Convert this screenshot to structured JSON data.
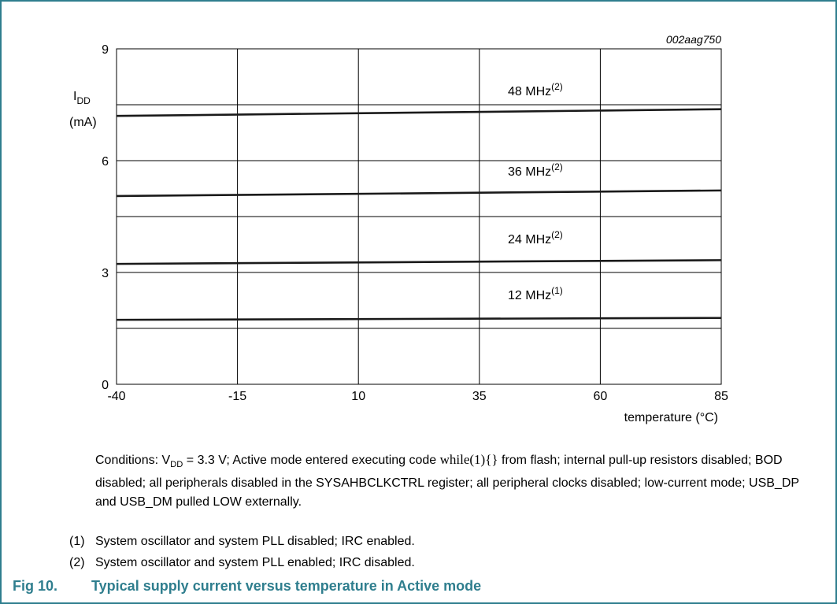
{
  "figure_id": "002aag750",
  "chart_data": {
    "type": "line",
    "ylabel_symbol": "I",
    "ylabel_sub": "DD",
    "ylabel_unit": "(mA)",
    "xlabel": "temperature (°C)",
    "x_ticks": [
      "-40",
      "-15",
      "10",
      "35",
      "60",
      "85"
    ],
    "y_ticks": [
      "0",
      "3",
      "6",
      "9"
    ],
    "xlim": [
      -40,
      85
    ],
    "ylim": [
      0,
      9
    ],
    "y_gridlines": [
      0,
      1.5,
      3,
      4.5,
      6,
      7.5,
      9
    ],
    "grid": true,
    "series": [
      {
        "name": "48 MHz",
        "note": "(2)",
        "x": [
          -40,
          85
        ],
        "y": [
          7.2,
          7.38
        ]
      },
      {
        "name": "36 MHz",
        "note": "(2)",
        "x": [
          -40,
          85
        ],
        "y": [
          5.05,
          5.2
        ]
      },
      {
        "name": "24 MHz",
        "note": "(2)",
        "x": [
          -40,
          85
        ],
        "y": [
          3.23,
          3.33
        ]
      },
      {
        "name": "12 MHz",
        "note": "(1)",
        "x": [
          -40,
          85
        ],
        "y": [
          1.73,
          1.78
        ]
      }
    ]
  },
  "conditions": {
    "prefix": "Conditions: V",
    "sub": "DD",
    "mid": " = 3.3 V; Active mode entered executing code ",
    "code": "while(1){}",
    "suffix": " from flash; internal pull-up resistors disabled; BOD disabled; all peripherals disabled in the SYSAHBCLKCTRL register; all peripheral clocks disabled; low-current mode; USB_DP and USB_DM pulled LOW externally."
  },
  "notes": [
    {
      "num": "(1)",
      "text": "System oscillator and system PLL disabled; IRC enabled."
    },
    {
      "num": "(2)",
      "text": "System oscillator and system PLL enabled; IRC disabled."
    }
  ],
  "caption": {
    "fig_label": "Fig 10.",
    "title": "Typical supply current versus temperature in Active mode"
  },
  "colors": {
    "border": "#2f7e8e",
    "caption": "#2f7e8e",
    "line": "#1a1a1a",
    "grid": "#000000"
  }
}
